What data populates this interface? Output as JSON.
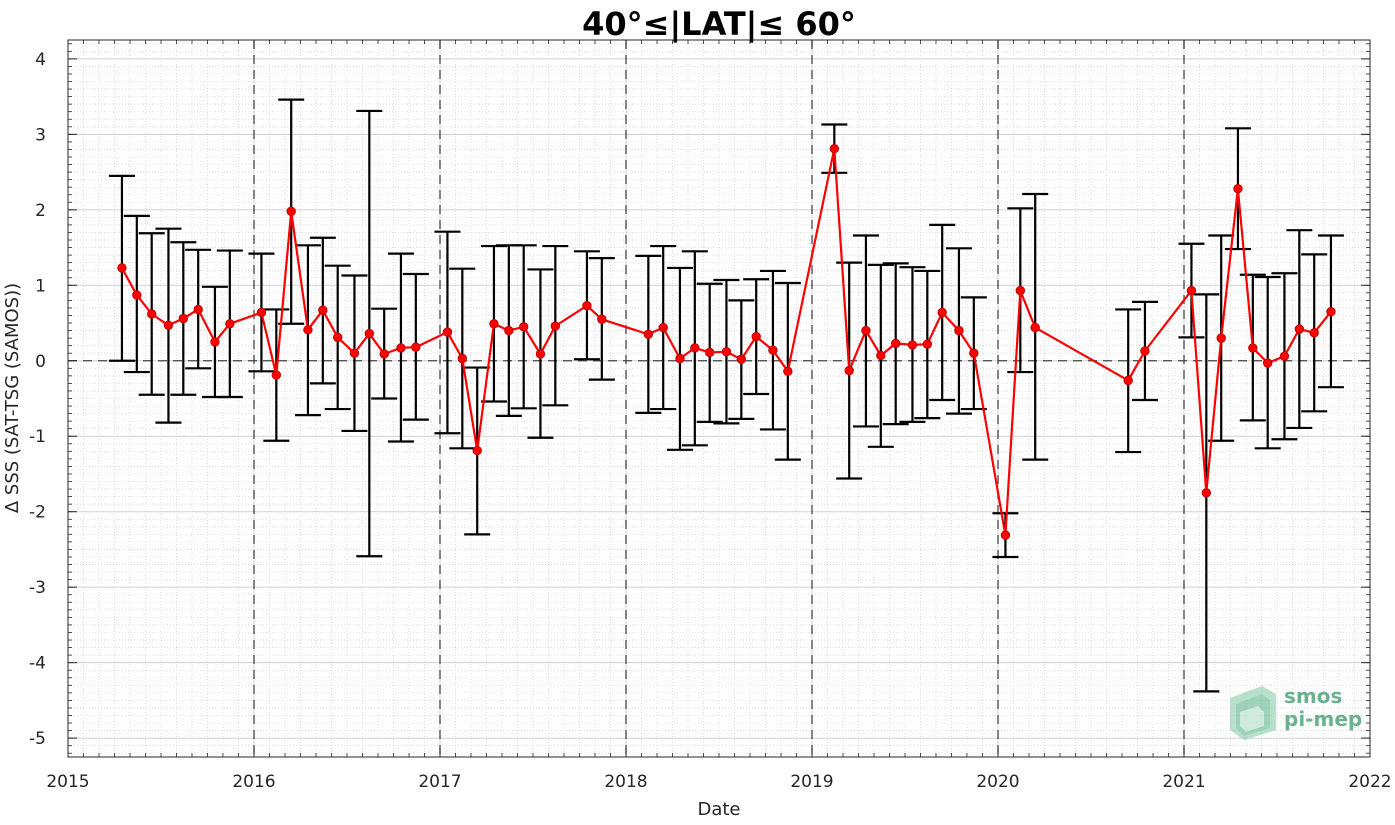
{
  "chart_data": {
    "type": "line",
    "title": "40°≤|LAT|≤ 60°",
    "xlabel": "Date",
    "ylabel": "Δ SSS (SAT-TSG (SAMOS))",
    "xlim": [
      2015,
      2022
    ],
    "ylim": [
      -5.25,
      4.25
    ],
    "xticks": [
      2015,
      2016,
      2017,
      2018,
      2019,
      2020,
      2021,
      2022
    ],
    "xtick_labels": [
      "2015",
      "2016",
      "2017",
      "2018",
      "2019",
      "2020",
      "2021",
      "2022"
    ],
    "yticks": [
      4,
      3,
      2,
      1,
      0,
      -1,
      -2,
      -3,
      -4,
      -5
    ],
    "ytick_labels": [
      "4",
      "3",
      "2",
      "1",
      "0",
      "-1",
      "-2",
      "-3",
      "-4",
      "-5"
    ],
    "year_dividers": [
      2016,
      2017,
      2018,
      2019,
      2020,
      2021
    ],
    "zero_line": 0,
    "grid": true,
    "series": [
      {
        "color": "#ff0000",
        "errorbar_color": "#000000",
        "points": [
          {
            "x": 2015.29,
            "y": 1.23,
            "lo": 0.0,
            "hi": 2.45
          },
          {
            "x": 2015.37,
            "y": 0.87,
            "lo": -0.15,
            "hi": 1.92
          },
          {
            "x": 2015.45,
            "y": 0.62,
            "lo": -0.45,
            "hi": 1.69
          },
          {
            "x": 2015.54,
            "y": 0.47,
            "lo": -0.82,
            "hi": 1.75
          },
          {
            "x": 2015.62,
            "y": 0.56,
            "lo": -0.45,
            "hi": 1.57
          },
          {
            "x": 2015.7,
            "y": 0.68,
            "lo": -0.1,
            "hi": 1.47
          },
          {
            "x": 2015.79,
            "y": 0.25,
            "lo": -0.48,
            "hi": 0.98
          },
          {
            "x": 2015.87,
            "y": 0.49,
            "lo": -0.48,
            "hi": 1.46
          },
          {
            "x": 2016.04,
            "y": 0.64,
            "lo": -0.14,
            "hi": 1.42
          },
          {
            "x": 2016.12,
            "y": -0.19,
            "lo": -1.06,
            "hi": 0.68
          },
          {
            "x": 2016.2,
            "y": 1.98,
            "lo": 0.49,
            "hi": 3.46
          },
          {
            "x": 2016.29,
            "y": 0.41,
            "lo": -0.72,
            "hi": 1.53
          },
          {
            "x": 2016.37,
            "y": 0.67,
            "lo": -0.3,
            "hi": 1.63
          },
          {
            "x": 2016.45,
            "y": 0.31,
            "lo": -0.64,
            "hi": 1.26
          },
          {
            "x": 2016.54,
            "y": 0.1,
            "lo": -0.93,
            "hi": 1.13
          },
          {
            "x": 2016.62,
            "y": 0.36,
            "lo": -2.59,
            "hi": 3.31
          },
          {
            "x": 2016.7,
            "y": 0.09,
            "lo": -0.5,
            "hi": 0.69
          },
          {
            "x": 2016.79,
            "y": 0.17,
            "lo": -1.07,
            "hi": 1.42
          },
          {
            "x": 2016.87,
            "y": 0.18,
            "lo": -0.78,
            "hi": 1.15
          },
          {
            "x": 2017.04,
            "y": 0.38,
            "lo": -0.96,
            "hi": 1.71
          },
          {
            "x": 2017.12,
            "y": 0.03,
            "lo": -1.16,
            "hi": 1.22
          },
          {
            "x": 2017.2,
            "y": -1.19,
            "lo": -2.3,
            "hi": -0.09
          },
          {
            "x": 2017.29,
            "y": 0.49,
            "lo": -0.54,
            "hi": 1.52
          },
          {
            "x": 2017.37,
            "y": 0.4,
            "lo": -0.73,
            "hi": 1.53
          },
          {
            "x": 2017.45,
            "y": 0.45,
            "lo": -0.63,
            "hi": 1.53
          },
          {
            "x": 2017.54,
            "y": 0.09,
            "lo": -1.02,
            "hi": 1.21
          },
          {
            "x": 2017.62,
            "y": 0.46,
            "lo": -0.59,
            "hi": 1.52
          },
          {
            "x": 2017.79,
            "y": 0.73,
            "lo": 0.02,
            "hi": 1.45
          },
          {
            "x": 2017.87,
            "y": 0.55,
            "lo": -0.25,
            "hi": 1.36
          },
          {
            "x": 2018.12,
            "y": 0.35,
            "lo": -0.69,
            "hi": 1.39
          },
          {
            "x": 2018.2,
            "y": 0.44,
            "lo": -0.64,
            "hi": 1.52
          },
          {
            "x": 2018.29,
            "y": 0.03,
            "lo": -1.18,
            "hi": 1.23
          },
          {
            "x": 2018.37,
            "y": 0.17,
            "lo": -1.12,
            "hi": 1.45
          },
          {
            "x": 2018.45,
            "y": 0.11,
            "lo": -0.81,
            "hi": 1.02
          },
          {
            "x": 2018.54,
            "y": 0.12,
            "lo": -0.83,
            "hi": 1.07
          },
          {
            "x": 2018.62,
            "y": 0.02,
            "lo": -0.77,
            "hi": 0.8
          },
          {
            "x": 2018.7,
            "y": 0.32,
            "lo": -0.44,
            "hi": 1.08
          },
          {
            "x": 2018.79,
            "y": 0.14,
            "lo": -0.91,
            "hi": 1.19
          },
          {
            "x": 2018.87,
            "y": -0.14,
            "lo": -1.31,
            "hi": 1.03
          },
          {
            "x": 2019.12,
            "y": 2.81,
            "lo": 2.49,
            "hi": 3.13
          },
          {
            "x": 2019.2,
            "y": -0.13,
            "lo": -1.56,
            "hi": 1.3
          },
          {
            "x": 2019.29,
            "y": 0.4,
            "lo": -0.87,
            "hi": 1.66
          },
          {
            "x": 2019.37,
            "y": 0.07,
            "lo": -1.14,
            "hi": 1.27
          },
          {
            "x": 2019.45,
            "y": 0.23,
            "lo": -0.84,
            "hi": 1.29
          },
          {
            "x": 2019.54,
            "y": 0.21,
            "lo": -0.81,
            "hi": 1.24
          },
          {
            "x": 2019.62,
            "y": 0.22,
            "lo": -0.76,
            "hi": 1.19
          },
          {
            "x": 2019.7,
            "y": 0.64,
            "lo": -0.52,
            "hi": 1.8
          },
          {
            "x": 2019.79,
            "y": 0.4,
            "lo": -0.7,
            "hi": 1.49
          },
          {
            "x": 2019.87,
            "y": 0.1,
            "lo": -0.64,
            "hi": 0.84
          },
          {
            "x": 2020.04,
            "y": -2.31,
            "lo": -2.6,
            "hi": -2.02
          },
          {
            "x": 2020.12,
            "y": 0.93,
            "lo": -0.15,
            "hi": 2.02
          },
          {
            "x": 2020.2,
            "y": 0.44,
            "lo": -1.31,
            "hi": 2.21
          },
          {
            "x": 2020.7,
            "y": -0.26,
            "lo": -1.21,
            "hi": 0.68
          },
          {
            "x": 2020.79,
            "y": 0.13,
            "lo": -0.52,
            "hi": 0.78
          },
          {
            "x": 2021.04,
            "y": 0.93,
            "lo": 0.31,
            "hi": 1.55
          },
          {
            "x": 2021.12,
            "y": -1.75,
            "lo": -4.38,
            "hi": 0.88
          },
          {
            "x": 2021.2,
            "y": 0.3,
            "lo": -1.06,
            "hi": 1.66
          },
          {
            "x": 2021.29,
            "y": 2.28,
            "lo": 1.48,
            "hi": 3.08
          },
          {
            "x": 2021.37,
            "y": 0.17,
            "lo": -0.79,
            "hi": 1.14
          },
          {
            "x": 2021.45,
            "y": -0.03,
            "lo": -1.16,
            "hi": 1.11
          },
          {
            "x": 2021.54,
            "y": 0.06,
            "lo": -1.04,
            "hi": 1.16
          },
          {
            "x": 2021.62,
            "y": 0.42,
            "lo": -0.89,
            "hi": 1.73
          },
          {
            "x": 2021.7,
            "y": 0.37,
            "lo": -0.67,
            "hi": 1.41
          },
          {
            "x": 2021.79,
            "y": 0.65,
            "lo": -0.35,
            "hi": 1.66
          }
        ]
      }
    ]
  },
  "logo": {
    "line1": "smos",
    "line2": "pi-mep",
    "color": "#3a9a6b"
  }
}
